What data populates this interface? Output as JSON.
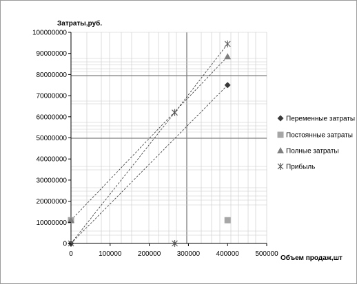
{
  "chart_data": {
    "type": "scatter",
    "title": "",
    "ylabel": "Затраты,руб.",
    "xlabel": "Объем продаж,шт",
    "xlim": [
      0,
      500000
    ],
    "ylim": [
      0,
      100000000
    ],
    "x_ticks": [
      0,
      100000,
      200000,
      300000,
      400000,
      500000
    ],
    "y_ticks": [
      0,
      10000000,
      20000000,
      30000000,
      40000000,
      50000000,
      60000000,
      70000000,
      80000000,
      90000000,
      100000000
    ],
    "grid": true,
    "legend_position": "right",
    "series": [
      {
        "name": "Переменные затраты",
        "marker": "diamond",
        "color": "#3a3a3a",
        "points": [
          [
            0,
            0
          ],
          [
            400000,
            75000000
          ]
        ],
        "trendline": true
      },
      {
        "name": "Постоянные затраты",
        "marker": "square",
        "color": "#a6a6a6",
        "points": [
          [
            0,
            11000000
          ],
          [
            400000,
            11000000
          ]
        ],
        "trendline": false
      },
      {
        "name": "Полные затраты",
        "marker": "triangle",
        "color": "#7f7f7f",
        "points": [
          [
            0,
            11000000
          ],
          [
            400000,
            88500000
          ]
        ],
        "trendline": true
      },
      {
        "name": "Прибыль",
        "marker": "star",
        "color": "#595959",
        "points": [
          [
            0,
            0
          ],
          [
            265000,
            62000000
          ],
          [
            400000,
            94500000
          ]
        ],
        "trendline": true,
        "extra_points": [
          [
            265000,
            0
          ]
        ]
      }
    ]
  }
}
